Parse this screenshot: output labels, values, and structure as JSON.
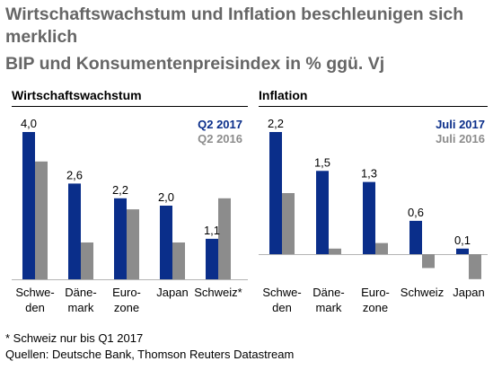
{
  "title": "Wirtschaftswachstum und Inflation beschleunigen sich merklich",
  "subtitle": "BIP und Konsumentenpreisindex in % ggü. Vj",
  "footnote": "* Schweiz nur bis Q1 2017",
  "source": "Quellen: Deutsche Bank, Thomson Reuters Datastream",
  "colors": {
    "current": "#0a2e8a",
    "previous": "#8c8c8c"
  },
  "chart_data": [
    {
      "type": "bar",
      "title": "Wirtschaftswachstum",
      "categories": [
        "Schwe-\nden",
        "Däne-\nmark",
        "Euro-\nzone",
        "Japan",
        "Schweiz*"
      ],
      "series": [
        {
          "name": "Q2 2017",
          "values": [
            4.0,
            2.6,
            2.2,
            2.0,
            1.1
          ],
          "labels": [
            "4,0",
            "2,6",
            "2,2",
            "2,0",
            "1,1"
          ]
        },
        {
          "name": "Q2 2016",
          "values": [
            3.2,
            1.0,
            1.9,
            1.0,
            2.2
          ]
        }
      ],
      "ylim": [
        0,
        4.0
      ],
      "legend": "top-right",
      "grid": false
    },
    {
      "type": "bar",
      "title": "Inflation",
      "categories": [
        "Schwe-\nden",
        "Däne-\nmark",
        "Euro-\nzone",
        "Schweiz",
        "Japan"
      ],
      "series": [
        {
          "name": "Juli 2017",
          "values": [
            2.2,
            1.5,
            1.3,
            0.6,
            0.1
          ],
          "labels": [
            "2,2",
            "1,5",
            "1,3",
            "0,6",
            "0,1"
          ]
        },
        {
          "name": "Juli 2016",
          "values": [
            1.1,
            0.1,
            0.2,
            -0.25,
            -0.45
          ]
        }
      ],
      "ylim": [
        -0.6,
        2.2
      ],
      "legend": "top-right",
      "grid": false
    }
  ]
}
